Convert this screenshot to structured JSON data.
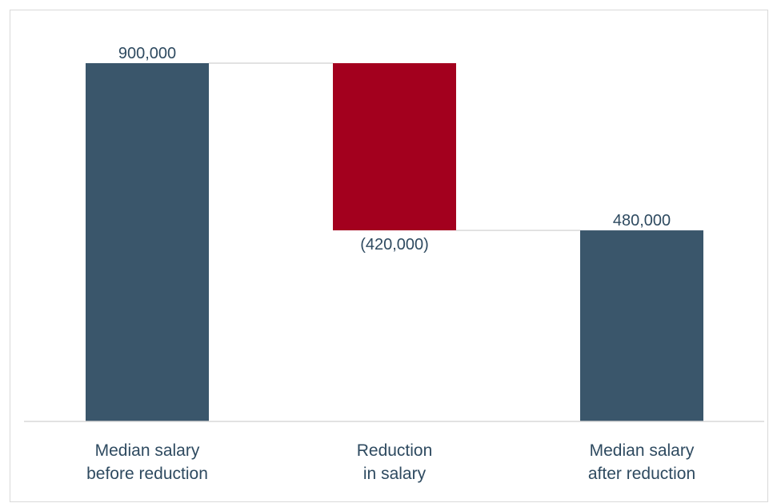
{
  "chart_data": {
    "type": "waterfall",
    "categories": [
      [
        "Median salary",
        "before reduction"
      ],
      [
        "Reduction",
        "in salary"
      ],
      [
        "Median salary",
        "after reduction"
      ]
    ],
    "values": [
      900000,
      -420000,
      480000
    ],
    "bar_kinds": [
      "total",
      "delta",
      "total"
    ],
    "data_labels": [
      "900,000",
      "(420,000)",
      "480,000"
    ],
    "ylim": [
      0,
      900000
    ],
    "grid": false,
    "colors": {
      "total": "#3a566b",
      "decrease": "#a3001e",
      "connector": "#d9d9d9",
      "baseline": "#d9d9d9",
      "label_text": "#2e4a60"
    }
  }
}
